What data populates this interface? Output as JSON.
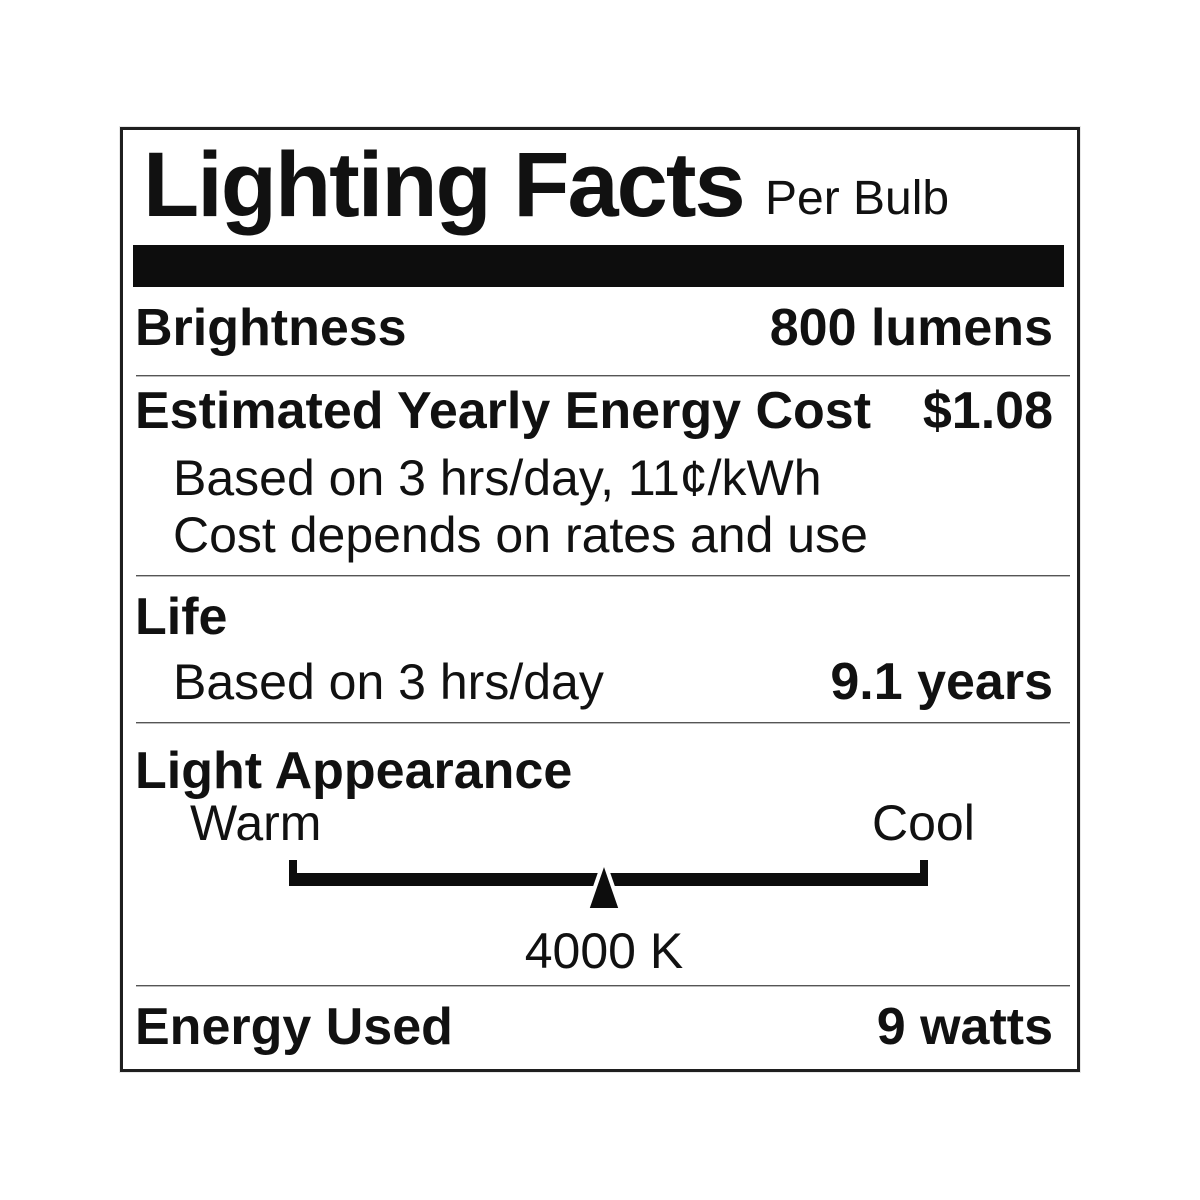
{
  "label": {
    "title": "Lighting Facts",
    "subtitle": "Per Bulb",
    "brightness": {
      "label": "Brightness",
      "value": "800 lumens"
    },
    "energy_cost": {
      "label": "Estimated Yearly Energy Cost",
      "value": "$1.08",
      "note1": "Based on 3 hrs/day, 11¢/kWh",
      "note2": "Cost depends on rates and use"
    },
    "life": {
      "label": "Life",
      "note": "Based on 3 hrs/day",
      "value": "9.1 years"
    },
    "light_appearance": {
      "label": "Light Appearance",
      "warm": "Warm",
      "cool": "Cool",
      "kelvin": "4000 K",
      "marker_pct": 49.3
    },
    "energy_used": {
      "label": "Energy Used",
      "value": "9 watts"
    },
    "colors": {
      "text": "#111111",
      "heavy_bar": "#0d0d0d",
      "divider": "#555555",
      "border": "#1f1f1f",
      "background": "#ffffff"
    }
  }
}
